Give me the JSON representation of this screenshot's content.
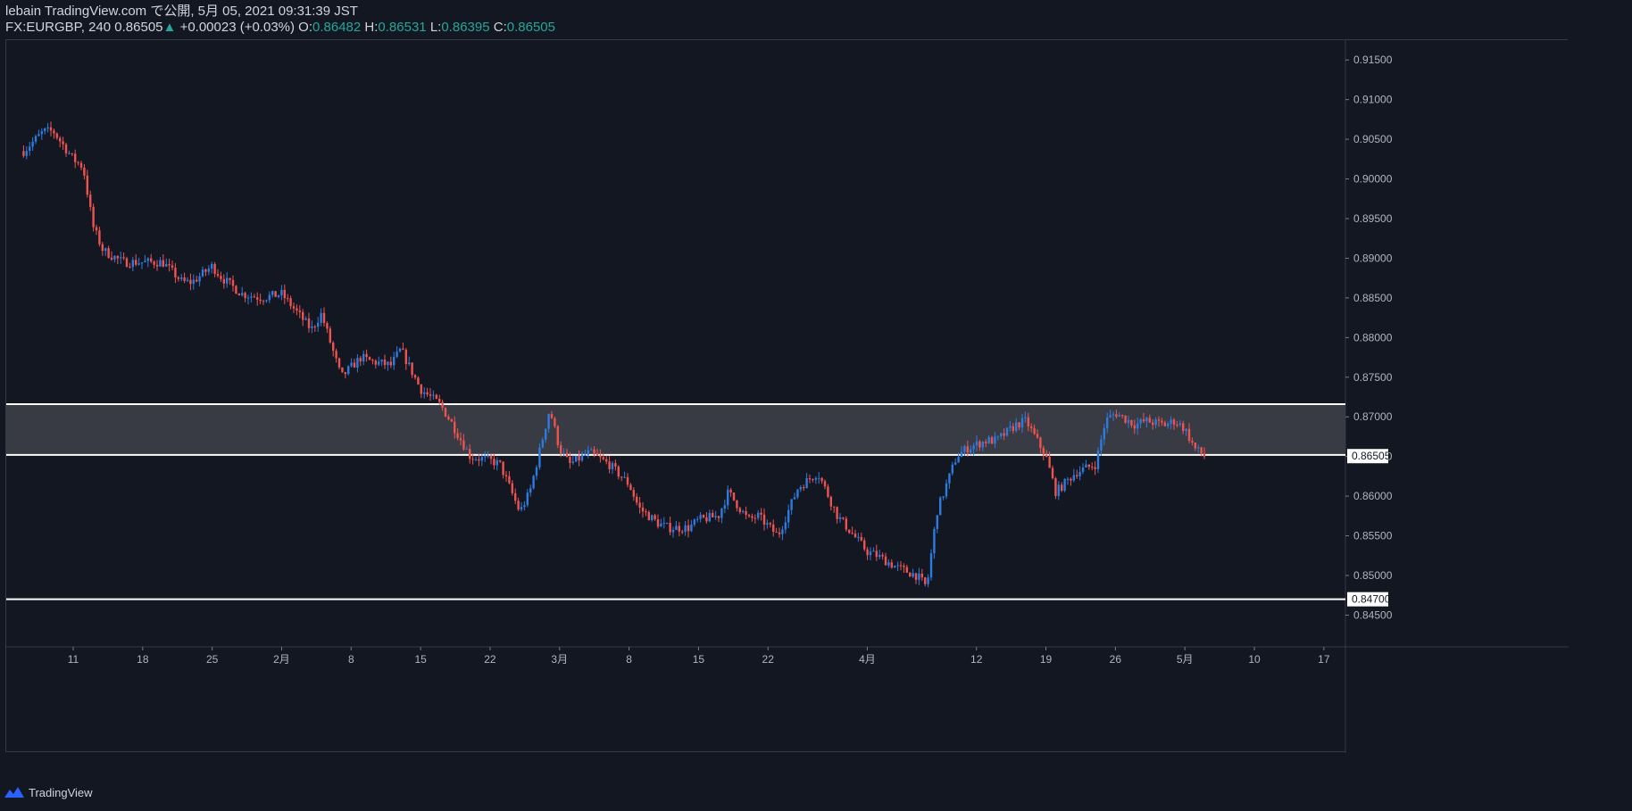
{
  "header": {
    "line1": "lebain TradingView.com で公開, 5月 05, 2021 09:31:39 JST",
    "symbol": "FX:EURGBP, 240",
    "last": "0.86505",
    "change": "+0.00023 (+0.03%)",
    "open_label": "O:",
    "open": "0.86482",
    "high_label": "H:",
    "high": "0.86531",
    "low_label": "L:",
    "low": "0.86395",
    "close_label": "C:",
    "close": "0.86505"
  },
  "footer": {
    "brand": "TradingView"
  },
  "colors": {
    "background": "#131722",
    "up": "#2e7be0",
    "down": "#ef5350",
    "zone": "#3a3d46",
    "line": "#ffffff"
  },
  "chart_data": {
    "type": "candlestick",
    "symbol": "FX:EURGBP",
    "timeframe": "240",
    "ylim": [
      0.841,
      0.9175
    ],
    "y_ticks": [
      "0.84500",
      "0.85000",
      "0.85500",
      "0.86000",
      "0.86500",
      "0.87000",
      "0.87500",
      "0.88000",
      "0.88500",
      "0.89000",
      "0.89500",
      "0.90000",
      "0.90500",
      "0.91000",
      "0.91500"
    ],
    "x_ticks": [
      "11",
      "18",
      "25",
      "2月",
      "8",
      "15",
      "22",
      "3月",
      "8",
      "15",
      "22",
      "4月",
      "12",
      "19",
      "26",
      "5月",
      "10",
      "17"
    ],
    "price_path": [
      [
        "2021-01-06",
        0.9035
      ],
      [
        "2021-01-08",
        0.906
      ],
      [
        "2021-01-09",
        0.906
      ],
      [
        "2021-01-11",
        0.9025
      ],
      [
        "2021-01-12",
        0.9015
      ],
      [
        "2021-01-13",
        0.894
      ],
      [
        "2021-01-14",
        0.891
      ],
      [
        "2021-01-16",
        0.8895
      ],
      [
        "2021-01-19",
        0.8895
      ],
      [
        "2021-01-20",
        0.8895
      ],
      [
        "2021-01-22",
        0.887
      ],
      [
        "2021-01-23",
        0.887
      ],
      [
        "2021-01-25",
        0.889
      ],
      [
        "2021-01-26",
        0.8875
      ],
      [
        "2021-01-28",
        0.8855
      ],
      [
        "2021-01-30",
        0.885
      ],
      [
        "2021-02-01",
        0.8855
      ],
      [
        "2021-02-03",
        0.8825
      ],
      [
        "2021-02-04",
        0.881
      ],
      [
        "2021-02-05",
        0.883
      ],
      [
        "2021-02-07",
        0.875
      ],
      [
        "2021-02-09",
        0.8775
      ],
      [
        "2021-02-10",
        0.877
      ],
      [
        "2021-02-12",
        0.8765
      ],
      [
        "2021-02-13",
        0.8785
      ],
      [
        "2021-02-15",
        0.8735
      ],
      [
        "2021-02-17",
        0.8715
      ],
      [
        "2021-02-18",
        0.8695
      ],
      [
        "2021-02-20",
        0.865
      ],
      [
        "2021-02-22",
        0.8645
      ],
      [
        "2021-02-23",
        0.864
      ],
      [
        "2021-02-25",
        0.858
      ],
      [
        "2021-02-26",
        0.8605
      ],
      [
        "2021-02-28",
        0.871
      ],
      [
        "2021-03-01",
        0.866
      ],
      [
        "2021-03-02",
        0.864
      ],
      [
        "2021-03-04",
        0.8655
      ],
      [
        "2021-03-06",
        0.864
      ],
      [
        "2021-03-08",
        0.8615
      ],
      [
        "2021-03-09",
        0.8585
      ],
      [
        "2021-03-11",
        0.8565
      ],
      [
        "2021-03-12",
        0.856
      ],
      [
        "2021-03-14",
        0.856
      ],
      [
        "2021-03-15",
        0.857
      ],
      [
        "2021-03-17",
        0.8575
      ],
      [
        "2021-03-18",
        0.8605
      ],
      [
        "2021-03-20",
        0.857
      ],
      [
        "2021-03-21",
        0.8575
      ],
      [
        "2021-03-23",
        0.855
      ],
      [
        "2021-03-25",
        0.861
      ],
      [
        "2021-03-26",
        0.862
      ],
      [
        "2021-03-27",
        0.863
      ],
      [
        "2021-03-29",
        0.8575
      ],
      [
        "2021-03-31",
        0.8545
      ],
      [
        "2021-04-01",
        0.853
      ],
      [
        "2021-04-02",
        0.8525
      ],
      [
        "2021-04-04",
        0.851
      ],
      [
        "2021-04-06",
        0.85
      ],
      [
        "2021-04-07",
        0.8485
      ],
      [
        "2021-04-08",
        0.858
      ],
      [
        "2021-04-10",
        0.865
      ],
      [
        "2021-04-11",
        0.866
      ],
      [
        "2021-04-13",
        0.867
      ],
      [
        "2021-04-14",
        0.867
      ],
      [
        "2021-04-16",
        0.869
      ],
      [
        "2021-04-17",
        0.8695
      ],
      [
        "2021-04-19",
        0.865
      ],
      [
        "2021-04-20",
        0.8605
      ],
      [
        "2021-04-22",
        0.863
      ],
      [
        "2021-04-24",
        0.864
      ],
      [
        "2021-04-25",
        0.8695
      ],
      [
        "2021-04-26",
        0.8705
      ],
      [
        "2021-04-28",
        0.869
      ],
      [
        "2021-04-29",
        0.8695
      ],
      [
        "2021-05-01",
        0.869
      ],
      [
        "2021-05-02",
        0.8695
      ],
      [
        "2021-05-03",
        0.8685
      ],
      [
        "2021-05-04",
        0.866
      ],
      [
        "2021-05-05",
        0.86505
      ]
    ],
    "zone": {
      "low": 0.8652,
      "high": 0.8716
    },
    "support_line": 0.847,
    "price_labels": [
      "0.86505",
      "0.84700"
    ]
  }
}
